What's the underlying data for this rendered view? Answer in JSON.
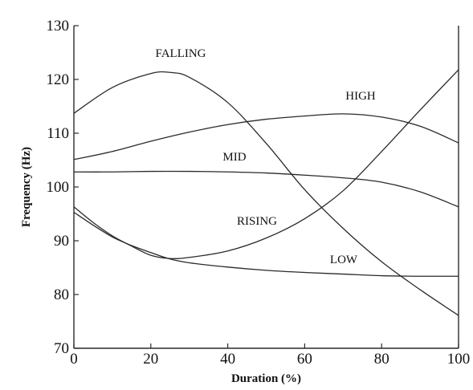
{
  "chart_data": {
    "type": "line",
    "xlabel": "Duration (%)",
    "ylabel": "Frequency (Hz)",
    "xlim": [
      0,
      100
    ],
    "ylim": [
      70,
      130
    ],
    "xticks": [
      "0",
      "20",
      "40",
      "60",
      "80",
      "100"
    ],
    "yticks": [
      "70",
      "80",
      "90",
      "100",
      "110",
      "120",
      "130"
    ],
    "grid": false,
    "line_color": "#2a2a2a",
    "series": [
      {
        "name": "FALLING",
        "x": [
          0,
          10,
          20,
          25,
          30,
          40,
          50,
          60,
          70,
          80,
          90,
          100
        ],
        "y": [
          113.7,
          118.5,
          121.1,
          121.3,
          120.4,
          115.7,
          108.1,
          99.5,
          92.3,
          86.1,
          80.9,
          76.1
        ]
      },
      {
        "name": "HIGH",
        "x": [
          0,
          10,
          20,
          30,
          40,
          50,
          60,
          70,
          80,
          90,
          100
        ],
        "y": [
          105.1,
          106.6,
          108.5,
          110.2,
          111.6,
          112.6,
          113.2,
          113.6,
          113.0,
          111.3,
          108.2
        ]
      },
      {
        "name": "MID",
        "x": [
          0,
          10,
          20,
          30,
          40,
          50,
          60,
          70,
          80,
          90,
          100
        ],
        "y": [
          102.8,
          102.8,
          102.9,
          102.9,
          102.8,
          102.6,
          102.2,
          101.7,
          100.9,
          99.1,
          96.3
        ]
      },
      {
        "name": "RISING",
        "x": [
          0,
          5,
          10,
          15,
          20,
          25,
          30,
          40,
          50,
          60,
          70,
          80,
          90,
          100
        ],
        "y": [
          96.3,
          93.4,
          90.9,
          89.0,
          87.3,
          86.7,
          86.9,
          88.1,
          90.5,
          94.1,
          99.3,
          106.6,
          114.3,
          121.8
        ]
      },
      {
        "name": "LOW",
        "x": [
          0,
          5,
          10,
          15,
          20,
          25,
          30,
          40,
          50,
          60,
          70,
          80,
          90,
          100
        ],
        "y": [
          95.3,
          92.9,
          90.7,
          89.1,
          87.8,
          86.6,
          85.9,
          85.1,
          84.5,
          84.1,
          83.8,
          83.5,
          83.4,
          83.4
        ]
      }
    ],
    "labels": [
      {
        "text": "FALLING",
        "series": "FALLING"
      },
      {
        "text": "HIGH",
        "series": "HIGH"
      },
      {
        "text": "MID",
        "series": "MID"
      },
      {
        "text": "RISING",
        "series": "RISING"
      },
      {
        "text": "LOW",
        "series": "LOW"
      }
    ]
  }
}
